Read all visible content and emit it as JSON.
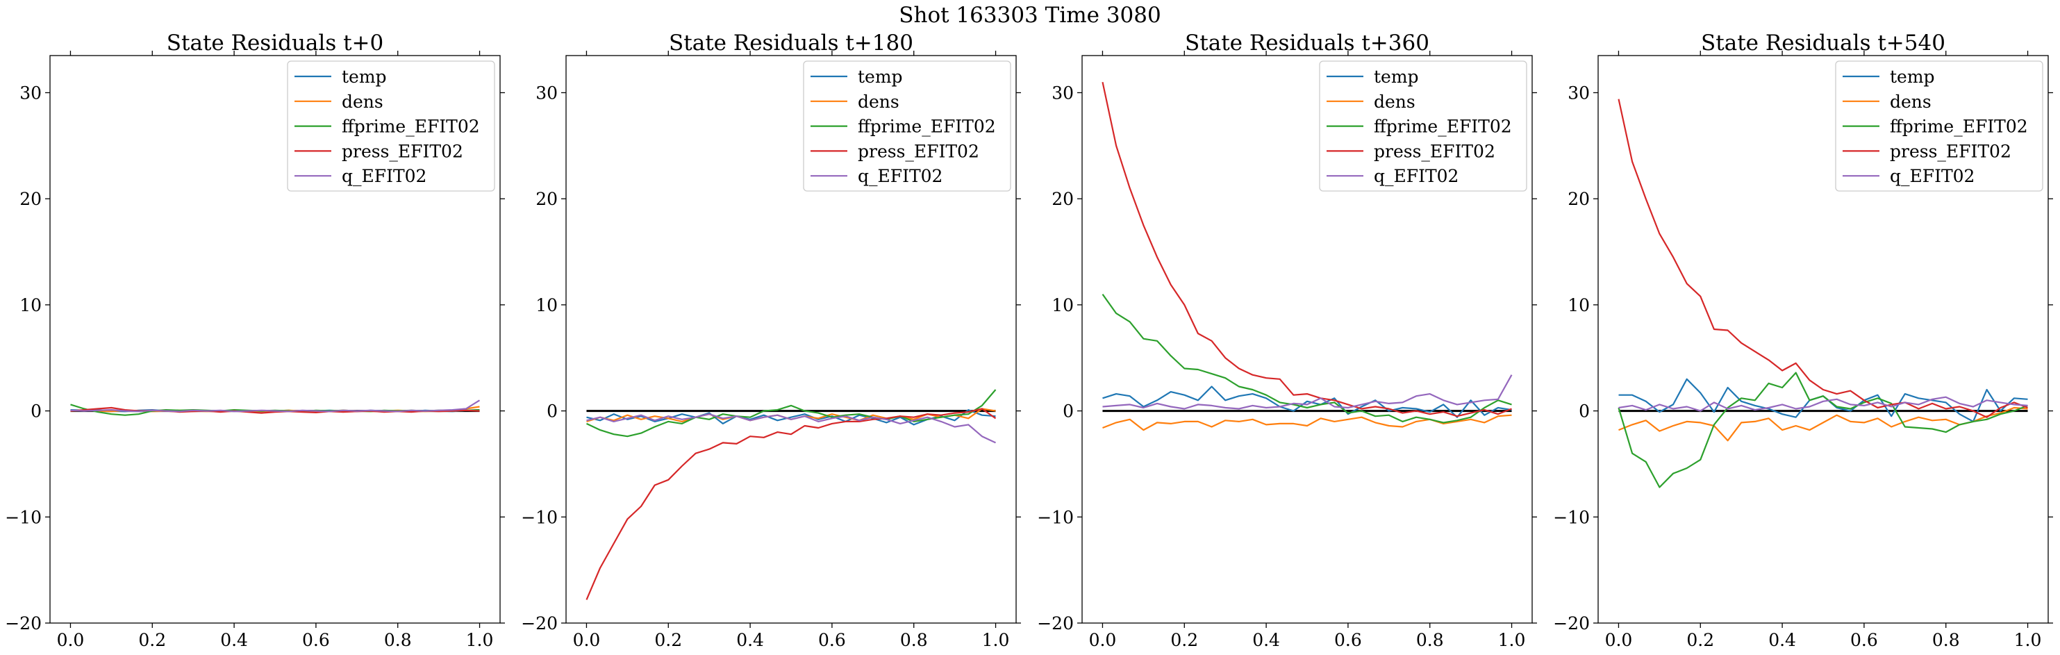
{
  "figure": {
    "suptitle": "Shot 163303   Time 3080"
  },
  "colors": {
    "temp": "#1f77b4",
    "dens": "#ff7f0e",
    "ffprime_EFIT02": "#2ca02c",
    "press_EFIT02": "#d62728",
    "q_EFIT02": "#9467bd",
    "zero_line": "#000000"
  },
  "chart_data": [
    {
      "type": "line",
      "title": "State Residuals t+0",
      "xlim": [
        -0.05,
        1.05
      ],
      "ylim": [
        -20,
        33.5
      ],
      "xticks": [
        0.0,
        0.2,
        0.4,
        0.6,
        0.8,
        1.0
      ],
      "xtick_labels": [
        "0.0",
        "0.2",
        "0.4",
        "0.6",
        "0.8",
        "1.0"
      ],
      "yticks": [
        -20,
        -10,
        0,
        10,
        20,
        30
      ],
      "ytick_labels": [
        "−20",
        "−10",
        "0",
        "10",
        "20",
        "30"
      ],
      "legend_position": "top-right",
      "x": [
        0.0,
        0.0333,
        0.0667,
        0.1,
        0.1333,
        0.1667,
        0.2,
        0.2333,
        0.2667,
        0.3,
        0.3333,
        0.3667,
        0.4,
        0.4333,
        0.4667,
        0.5,
        0.5333,
        0.5667,
        0.6,
        0.6333,
        0.6667,
        0.7,
        0.7333,
        0.7667,
        0.8,
        0.8333,
        0.8667,
        0.9,
        0.9333,
        0.9667,
        1.0
      ],
      "series": [
        {
          "name": "temp",
          "values": [
            0.1,
            0.05,
            0.1,
            0.0,
            -0.05,
            0.05,
            0.1,
            0.0,
            -0.05,
            0.05,
            0.0,
            -0.05,
            0.05,
            0.0,
            -0.05,
            0.0,
            0.05,
            -0.05,
            0.0,
            0.05,
            0.0,
            -0.05,
            0.05,
            0.0,
            0.0,
            -0.05,
            0.05,
            0.0,
            -0.05,
            0.05,
            0.1
          ]
        },
        {
          "name": "dens",
          "values": [
            0.0,
            0.05,
            0.0,
            -0.05,
            0.05,
            0.0,
            -0.05,
            0.0,
            0.05,
            0.0,
            -0.05,
            0.0,
            0.05,
            0.0,
            -0.05,
            0.0,
            0.05,
            0.0,
            -0.05,
            0.0,
            0.05,
            0.0,
            -0.05,
            0.0,
            0.05,
            0.0,
            -0.05,
            0.0,
            0.05,
            0.2,
            0.4
          ]
        },
        {
          "name": "ffprime_EFIT02",
          "values": [
            0.6,
            0.2,
            -0.1,
            -0.3,
            -0.4,
            -0.3,
            0.0,
            0.1,
            0.05,
            0.1,
            0.05,
            0.0,
            0.1,
            0.05,
            0.0,
            0.05,
            0.0,
            -0.05,
            0.05,
            0.0,
            0.05,
            0.0,
            -0.05,
            0.05,
            0.0,
            0.05,
            0.0,
            0.05,
            0.0,
            0.05,
            0.1
          ]
        },
        {
          "name": "press_EFIT02",
          "values": [
            0.0,
            0.1,
            0.2,
            0.3,
            0.1,
            0.0,
            0.05,
            0.0,
            -0.1,
            -0.05,
            0.0,
            -0.1,
            0.0,
            -0.1,
            -0.2,
            -0.1,
            -0.05,
            -0.1,
            -0.15,
            -0.05,
            -0.1,
            -0.05,
            0.0,
            -0.1,
            -0.05,
            -0.1,
            0.0,
            -0.05,
            0.0,
            0.05,
            0.0
          ]
        },
        {
          "name": "q_EFIT02",
          "values": [
            0.05,
            0.0,
            0.05,
            0.1,
            0.0,
            -0.05,
            0.05,
            0.0,
            -0.05,
            0.05,
            0.0,
            0.05,
            -0.05,
            0.0,
            0.05,
            0.0,
            -0.05,
            0.05,
            0.0,
            -0.05,
            0.05,
            0.0,
            0.05,
            0.0,
            -0.05,
            0.05,
            0.0,
            0.05,
            0.1,
            0.2,
            1.0
          ]
        }
      ]
    },
    {
      "type": "line",
      "title": "State Residuals t+180",
      "xlim": [
        -0.05,
        1.05
      ],
      "ylim": [
        -20,
        33.5
      ],
      "xticks": [
        0.0,
        0.2,
        0.4,
        0.6,
        0.8,
        1.0
      ],
      "xtick_labels": [
        "0.0",
        "0.2",
        "0.4",
        "0.6",
        "0.8",
        "1.0"
      ],
      "yticks": [
        -20,
        -10,
        0,
        10,
        20,
        30
      ],
      "ytick_labels": [
        "−20",
        "−10",
        "0",
        "10",
        "20",
        "30"
      ],
      "legend_position": "top-right",
      "x": [
        0.0,
        0.0333,
        0.0667,
        0.1,
        0.1333,
        0.1667,
        0.2,
        0.2333,
        0.2667,
        0.3,
        0.3333,
        0.3667,
        0.4,
        0.4333,
        0.4667,
        0.5,
        0.5333,
        0.5667,
        0.6,
        0.6333,
        0.6667,
        0.7,
        0.7333,
        0.7667,
        0.8,
        0.8333,
        0.8667,
        0.9,
        0.9333,
        0.9667,
        1.0
      ],
      "series": [
        {
          "name": "temp",
          "values": [
            -0.6,
            -0.9,
            -0.3,
            -0.8,
            -0.5,
            -1.0,
            -0.7,
            -0.3,
            -0.6,
            -0.2,
            -1.2,
            -0.5,
            -0.8,
            -0.4,
            -0.9,
            -0.6,
            -0.3,
            -0.8,
            -0.5,
            -1.0,
            -0.4,
            -0.7,
            -1.1,
            -0.6,
            -1.3,
            -0.8,
            -0.5,
            -0.9,
            0.1,
            -0.4,
            -0.5
          ]
        },
        {
          "name": "dens",
          "values": [
            -1.0,
            -0.6,
            -0.9,
            -0.4,
            -0.8,
            -0.5,
            -0.7,
            -1.0,
            -0.6,
            -0.3,
            -0.8,
            -0.5,
            -0.9,
            -0.6,
            -0.4,
            -0.8,
            -0.5,
            -0.7,
            -0.3,
            -0.6,
            -0.9,
            -0.4,
            -0.7,
            -0.5,
            -0.8,
            -0.3,
            -0.6,
            -0.4,
            -0.7,
            0.2,
            0.0
          ]
        },
        {
          "name": "ffprime_EFIT02",
          "values": [
            -1.2,
            -1.8,
            -2.2,
            -2.4,
            -2.1,
            -1.5,
            -1.0,
            -1.2,
            -0.6,
            -0.8,
            -0.3,
            -0.5,
            -0.6,
            0.0,
            0.1,
            0.5,
            0.0,
            -0.2,
            -0.6,
            -0.4,
            -0.3,
            -0.6,
            -0.8,
            -0.5,
            -1.0,
            -0.8,
            -0.6,
            -0.4,
            -0.3,
            0.5,
            2.0
          ]
        },
        {
          "name": "press_EFIT02",
          "values": [
            -17.8,
            -14.8,
            -12.5,
            -10.2,
            -9.0,
            -7.0,
            -6.5,
            -5.2,
            -4.0,
            -3.6,
            -3.0,
            -3.1,
            -2.4,
            -2.5,
            -2.0,
            -2.2,
            -1.4,
            -1.6,
            -1.2,
            -1.0,
            -1.0,
            -0.8,
            -0.7,
            -0.5,
            -0.6,
            -0.3,
            -0.4,
            -0.2,
            -0.1,
            0.2,
            -0.7
          ]
        },
        {
          "name": "q_EFIT02",
          "values": [
            -0.9,
            -0.6,
            -1.0,
            -0.7,
            -0.4,
            -0.9,
            -0.5,
            -0.8,
            -0.6,
            -0.3,
            -0.7,
            -0.5,
            -0.9,
            -0.6,
            -0.4,
            -0.8,
            -0.5,
            -1.0,
            -0.7,
            -0.5,
            -0.9,
            -0.6,
            -0.8,
            -1.2,
            -0.9,
            -0.6,
            -1.0,
            -1.5,
            -1.3,
            -2.4,
            -3.0
          ]
        }
      ]
    },
    {
      "type": "line",
      "title": "State Residuals t+360",
      "xlim": [
        -0.05,
        1.05
      ],
      "ylim": [
        -20,
        33.5
      ],
      "xticks": [
        0.0,
        0.2,
        0.4,
        0.6,
        0.8,
        1.0
      ],
      "xtick_labels": [
        "0.0",
        "0.2",
        "0.4",
        "0.6",
        "0.8",
        "1.0"
      ],
      "yticks": [
        -20,
        -10,
        0,
        10,
        20,
        30
      ],
      "ytick_labels": [
        "−20",
        "−10",
        "0",
        "10",
        "20",
        "30"
      ],
      "legend_position": "top-right",
      "x": [
        0.0,
        0.0333,
        0.0667,
        0.1,
        0.1333,
        0.1667,
        0.2,
        0.2333,
        0.2667,
        0.3,
        0.3333,
        0.3667,
        0.4,
        0.4333,
        0.4667,
        0.5,
        0.5333,
        0.5667,
        0.6,
        0.6333,
        0.6667,
        0.7,
        0.7333,
        0.7667,
        0.8,
        0.8333,
        0.8667,
        0.9,
        0.9333,
        0.9667,
        1.0
      ],
      "series": [
        {
          "name": "temp",
          "values": [
            1.2,
            1.6,
            1.4,
            0.4,
            1.0,
            1.8,
            1.5,
            1.0,
            2.3,
            1.0,
            1.4,
            1.6,
            1.2,
            0.4,
            0.0,
            0.9,
            0.6,
            1.2,
            -0.3,
            0.4,
            1.0,
            0.0,
            0.3,
            0.2,
            -0.1,
            0.6,
            -0.6,
            1.0,
            -0.4,
            0.3,
            0.1
          ]
        },
        {
          "name": "dens",
          "values": [
            -1.6,
            -1.1,
            -0.8,
            -1.8,
            -1.1,
            -1.2,
            -1.0,
            -1.0,
            -1.5,
            -0.9,
            -1.0,
            -0.8,
            -1.3,
            -1.2,
            -1.2,
            -1.4,
            -0.7,
            -1.0,
            -0.8,
            -0.6,
            -1.1,
            -1.4,
            -1.5,
            -1.0,
            -0.8,
            -1.2,
            -1.0,
            -0.8,
            -1.1,
            -0.5,
            -0.4
          ]
        },
        {
          "name": "ffprime_EFIT02",
          "values": [
            11.0,
            9.2,
            8.4,
            6.8,
            6.6,
            5.2,
            4.0,
            3.9,
            3.5,
            3.1,
            2.3,
            2.0,
            1.5,
            0.8,
            0.6,
            0.3,
            0.6,
            0.8,
            -0.2,
            0.0,
            -0.5,
            -0.4,
            -1.0,
            -0.6,
            -0.8,
            -1.1,
            -0.9,
            -0.6,
            0.3,
            1.0,
            0.6
          ]
        },
        {
          "name": "press_EFIT02",
          "values": [
            31.0,
            25.0,
            21.0,
            17.5,
            14.5,
            11.9,
            10.0,
            7.3,
            6.6,
            5.0,
            4.0,
            3.4,
            3.1,
            3.0,
            1.5,
            1.6,
            1.2,
            1.0,
            0.6,
            0.2,
            0.4,
            0.2,
            -0.2,
            0.0,
            -0.3,
            -0.1,
            -0.5,
            -0.2,
            0.1,
            -0.3,
            0.2
          ]
        },
        {
          "name": "q_EFIT02",
          "values": [
            0.4,
            0.5,
            0.6,
            0.3,
            0.7,
            0.4,
            0.2,
            0.6,
            0.5,
            0.3,
            0.2,
            0.5,
            0.3,
            0.4,
            0.7,
            0.6,
            1.2,
            0.4,
            0.3,
            0.6,
            0.9,
            0.7,
            0.8,
            1.4,
            1.6,
            1.0,
            0.6,
            0.8,
            1.0,
            1.1,
            3.4
          ]
        }
      ]
    },
    {
      "type": "line",
      "title": "State Residuals t+540",
      "xlim": [
        -0.05,
        1.05
      ],
      "ylim": [
        -20,
        33.5
      ],
      "xticks": [
        0.0,
        0.2,
        0.4,
        0.6,
        0.8,
        1.0
      ],
      "xtick_labels": [
        "0.0",
        "0.2",
        "0.4",
        "0.6",
        "0.8",
        "1.0"
      ],
      "yticks": [
        -20,
        -10,
        0,
        10,
        20,
        30
      ],
      "ytick_labels": [
        "−20",
        "−10",
        "0",
        "10",
        "20",
        "30"
      ],
      "legend_position": "top-right",
      "x": [
        0.0,
        0.0333,
        0.0667,
        0.1,
        0.1333,
        0.1667,
        0.2,
        0.2333,
        0.2667,
        0.3,
        0.3333,
        0.3667,
        0.4,
        0.4333,
        0.4667,
        0.5,
        0.5333,
        0.5667,
        0.6,
        0.6333,
        0.6667,
        0.7,
        0.7333,
        0.7667,
        0.8,
        0.8333,
        0.8667,
        0.9,
        0.9333,
        0.9667,
        1.0
      ],
      "series": [
        {
          "name": "temp",
          "values": [
            1.5,
            1.5,
            0.9,
            -0.1,
            0.6,
            3.0,
            1.7,
            -0.1,
            2.2,
            0.9,
            0.5,
            0.2,
            -0.3,
            -0.6,
            1.0,
            1.4,
            0.3,
            0.0,
            1.0,
            1.5,
            -0.5,
            1.6,
            1.2,
            1.0,
            0.8,
            -0.3,
            -1.0,
            2.0,
            0.0,
            1.2,
            1.1
          ]
        },
        {
          "name": "dens",
          "values": [
            -1.8,
            -1.3,
            -0.9,
            -1.9,
            -1.4,
            -1.0,
            -1.1,
            -1.4,
            -2.8,
            -1.1,
            -1.0,
            -0.7,
            -1.8,
            -1.4,
            -1.8,
            -1.1,
            -0.4,
            -1.0,
            -1.1,
            -0.7,
            -1.5,
            -1.0,
            -0.6,
            -0.9,
            -0.8,
            -1.3,
            -1.0,
            -0.5,
            -0.2,
            0.3,
            0.2
          ]
        },
        {
          "name": "ffprime_EFIT02",
          "values": [
            0.3,
            -4.0,
            -4.8,
            -7.2,
            -5.9,
            -5.4,
            -4.6,
            -1.3,
            0.3,
            1.2,
            1.0,
            2.6,
            2.2,
            3.6,
            1.0,
            1.4,
            0.4,
            0.2,
            0.8,
            1.2,
            0.7,
            -1.5,
            -1.6,
            -1.7,
            -2.0,
            -1.3,
            -1.0,
            -0.8,
            -0.3,
            0.0,
            0.5
          ]
        },
        {
          "name": "press_EFIT02",
          "values": [
            29.4,
            23.5,
            20.0,
            16.7,
            14.5,
            12.0,
            10.8,
            7.7,
            7.6,
            6.4,
            5.6,
            4.8,
            3.8,
            4.5,
            2.9,
            2.0,
            1.6,
            1.9,
            1.0,
            0.3,
            0.6,
            0.8,
            0.2,
            0.7,
            0.2,
            0.4,
            0.0,
            -0.6,
            0.3,
            0.8,
            0.3
          ]
        },
        {
          "name": "q_EFIT02",
          "values": [
            0.3,
            0.5,
            0.1,
            0.6,
            0.2,
            0.4,
            0.0,
            0.8,
            0.2,
            0.5,
            0.1,
            0.3,
            0.6,
            0.2,
            0.4,
            0.9,
            1.1,
            0.6,
            0.5,
            0.8,
            0.4,
            0.8,
            0.6,
            1.1,
            1.3,
            0.7,
            0.4,
            1.0,
            0.8,
            0.6,
            0.5
          ]
        }
      ]
    }
  ]
}
